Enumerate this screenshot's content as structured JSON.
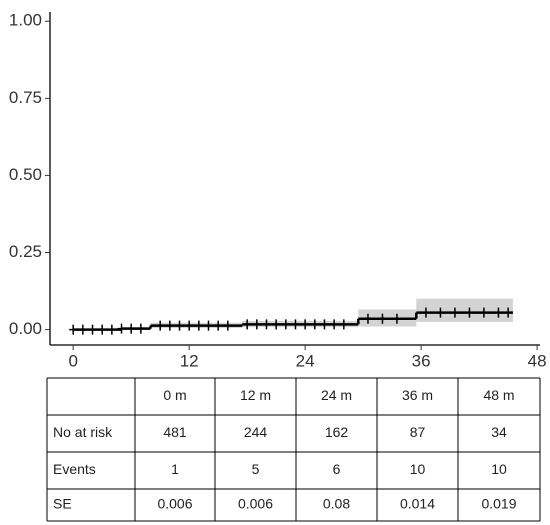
{
  "chart_data": {
    "type": "step",
    "x": [
      0,
      5,
      8,
      17.5,
      29.5,
      35.5
    ],
    "x_end": 45.5,
    "values": [
      0,
      0.003,
      0.013,
      0.017,
      0.035,
      0.055
    ],
    "lower": [
      0,
      0,
      0.005,
      0.008,
      0.01,
      0.025
    ],
    "upper": [
      0.004,
      0.008,
      0.022,
      0.028,
      0.065,
      0.1
    ],
    "color": "#000000",
    "band_color": "#d3d3d3",
    "censored": {
      "x": [
        0,
        1,
        2,
        3,
        4,
        5,
        6,
        7,
        9,
        10,
        11,
        12,
        13,
        14,
        15,
        16,
        18,
        19,
        20,
        21,
        22,
        23,
        24,
        25,
        26,
        27,
        28,
        30.5,
        32,
        33.5,
        36.5,
        38,
        39.5,
        41,
        42.5,
        44,
        45
      ],
      "values": [
        0,
        0,
        0,
        0,
        0,
        0.003,
        0.003,
        0.003,
        0.013,
        0.013,
        0.013,
        0.013,
        0.013,
        0.013,
        0.013,
        0.013,
        0.017,
        0.017,
        0.017,
        0.017,
        0.017,
        0.017,
        0.017,
        0.017,
        0.017,
        0.017,
        0.017,
        0.035,
        0.035,
        0.035,
        0.055,
        0.055,
        0.055,
        0.055,
        0.055,
        0.055,
        0.055
      ]
    },
    "xlim": [
      -2.4,
      48.3
    ],
    "xticks": [
      0,
      12,
      24,
      36,
      48
    ],
    "ylim": [
      -0.05,
      1.03
    ],
    "yticks": [
      {
        "value": 0,
        "label": "0.00"
      },
      {
        "value": 0.25,
        "label": "0.25"
      },
      {
        "value": 0.5,
        "label": "0.50"
      },
      {
        "value": 0.75,
        "label": "0.75"
      },
      {
        "value": 1,
        "label": "1.00"
      }
    ]
  },
  "table": {
    "columns": [
      "0 m",
      "12 m",
      "24 m",
      "36 m",
      "48 m"
    ],
    "rows": [
      {
        "label": "No at risk",
        "values": [
          481,
          244,
          162,
          87,
          34
        ]
      },
      {
        "label": "Events",
        "values": [
          1,
          5,
          6,
          10,
          10
        ]
      },
      {
        "label": "SE",
        "values": [
          0.006,
          0.006,
          0.08,
          0.014,
          0.019
        ]
      }
    ]
  }
}
